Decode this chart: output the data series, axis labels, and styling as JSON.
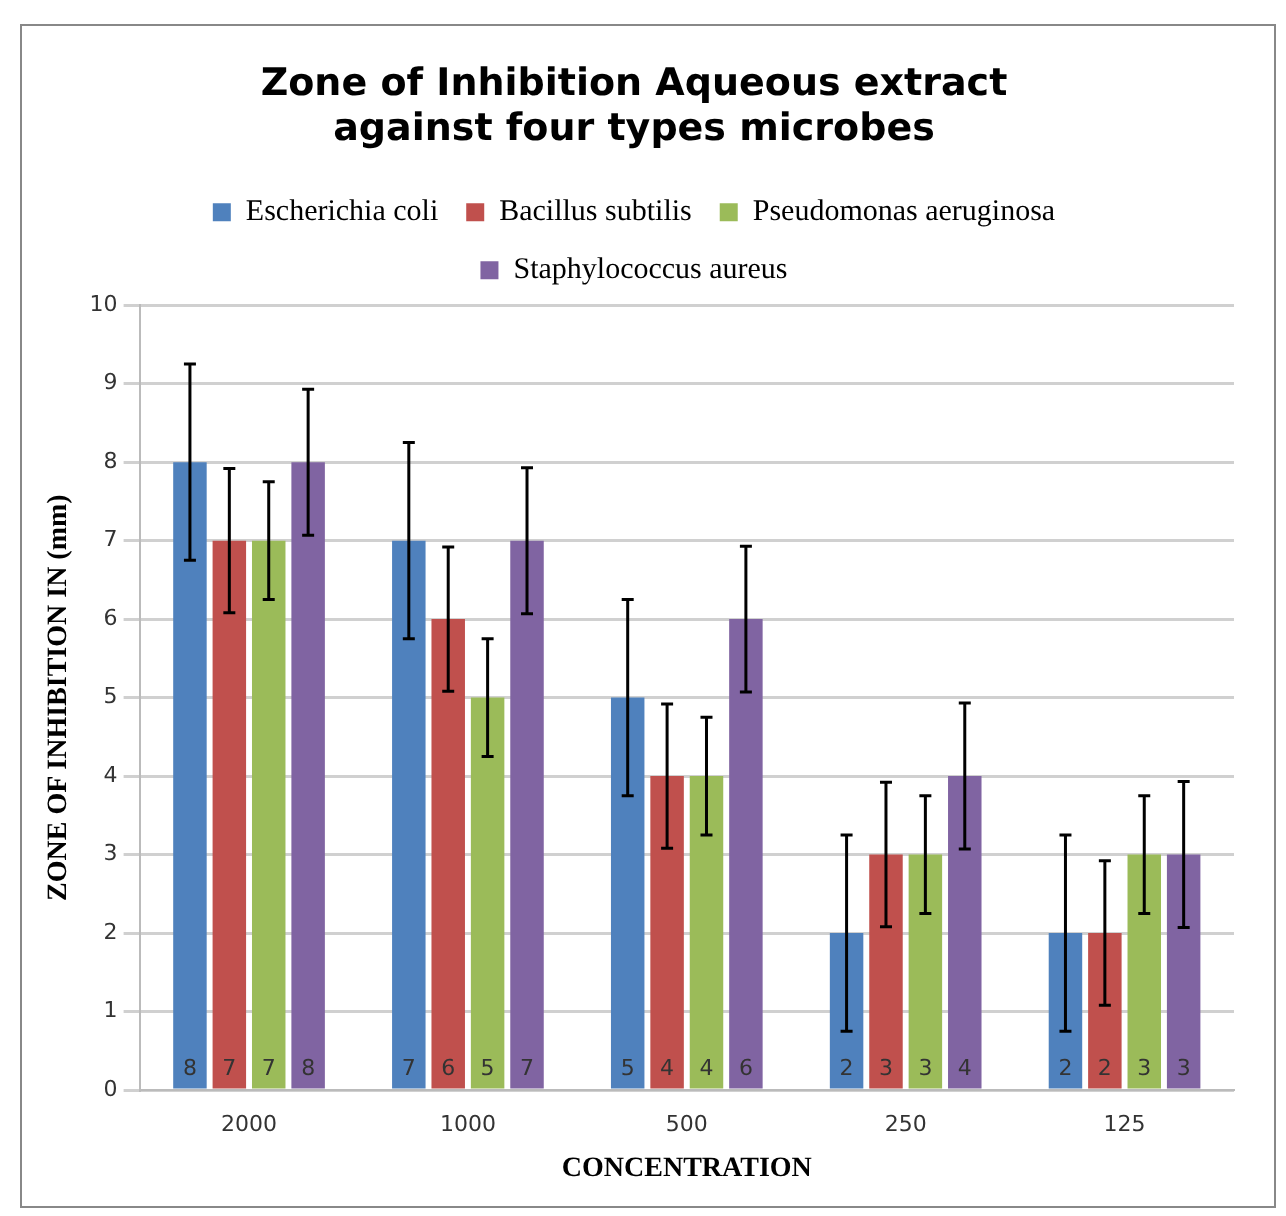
{
  "chart_data": {
    "type": "bar",
    "title": "Zone of Inhibition Aqueous extract against four types microbes",
    "xlabel": "CONCENTRATION",
    "ylabel": "ZONE OF INHIBITION IN (mm)",
    "categories": [
      "2000",
      "1000",
      "500",
      "250",
      "125"
    ],
    "series": [
      {
        "name": "Escherichia coli",
        "color": "#4f81bd",
        "values": [
          8,
          7,
          5,
          2,
          2
        ],
        "errors": [
          1.25,
          1.25,
          1.25,
          1.25,
          1.25
        ]
      },
      {
        "name": "Bacillus subtilis",
        "color": "#c0504d",
        "values": [
          7,
          6,
          4,
          3,
          2
        ],
        "errors": [
          0.92,
          0.92,
          0.92,
          0.92,
          0.92
        ]
      },
      {
        "name": "Pseudomonas aeruginosa",
        "color": "#9bbb59",
        "values": [
          7,
          5,
          4,
          3,
          3
        ],
        "errors": [
          0.75,
          0.75,
          0.75,
          0.75,
          0.75
        ]
      },
      {
        "name": "Staphylococcus aureus",
        "color": "#8064a2",
        "values": [
          8,
          7,
          6,
          4,
          3
        ],
        "errors": [
          0.93,
          0.93,
          0.93,
          0.93,
          0.93
        ]
      }
    ],
    "ylim": [
      0,
      10
    ],
    "yticks": [
      0,
      1,
      2,
      3,
      4,
      5,
      6,
      7,
      8,
      9,
      10
    ],
    "grid": "y",
    "legend": "top",
    "data_labels": true
  }
}
